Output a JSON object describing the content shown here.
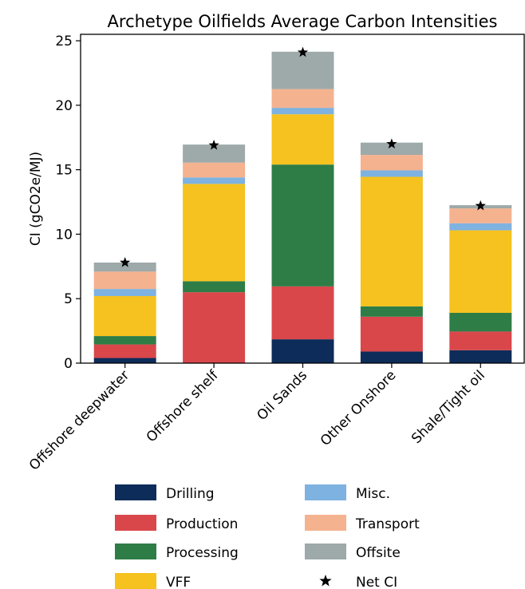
{
  "chart_data": {
    "type": "bar",
    "stacked": true,
    "title": "Archetype Oilfields Average Carbon Intensities",
    "xlabel": "",
    "ylabel": "CI (gCO2e/MJ)",
    "ylim": [
      0,
      25.5
    ],
    "yticks": [
      0,
      5,
      10,
      15,
      20,
      25
    ],
    "grid": false,
    "legend_position": "bottom",
    "categories": [
      "Offshore deepwater",
      "Offshore shelf",
      "Oil Sands",
      "Other Onshore",
      "Shale/Tight oil"
    ],
    "series": [
      {
        "name": "Drilling",
        "color": "#0d2c5a",
        "values": [
          0.4,
          0.0,
          1.85,
          0.9,
          1.0
        ]
      },
      {
        "name": "Production",
        "color": "#d9474b",
        "values": [
          1.05,
          5.5,
          4.1,
          2.7,
          1.45
        ]
      },
      {
        "name": "Processing",
        "color": "#2e7d46",
        "values": [
          0.65,
          0.85,
          9.45,
          0.8,
          1.45
        ]
      },
      {
        "name": "VFF",
        "color": "#f6c21f",
        "values": [
          3.1,
          7.55,
          3.9,
          10.05,
          6.4
        ]
      },
      {
        "name": "Misc.",
        "color": "#7eb2e0",
        "values": [
          0.55,
          0.5,
          0.5,
          0.5,
          0.55
        ]
      },
      {
        "name": "Transport",
        "color": "#f5b28f",
        "values": [
          1.35,
          1.15,
          1.45,
          1.2,
          1.15
        ]
      },
      {
        "name": "Offsite",
        "color": "#9ea9a9",
        "values": [
          0.7,
          1.4,
          2.9,
          0.95,
          0.25
        ]
      }
    ],
    "net_ci": {
      "name": "Net CI",
      "marker": "star",
      "values": [
        7.8,
        16.9,
        24.1,
        17.0,
        12.2
      ]
    }
  }
}
